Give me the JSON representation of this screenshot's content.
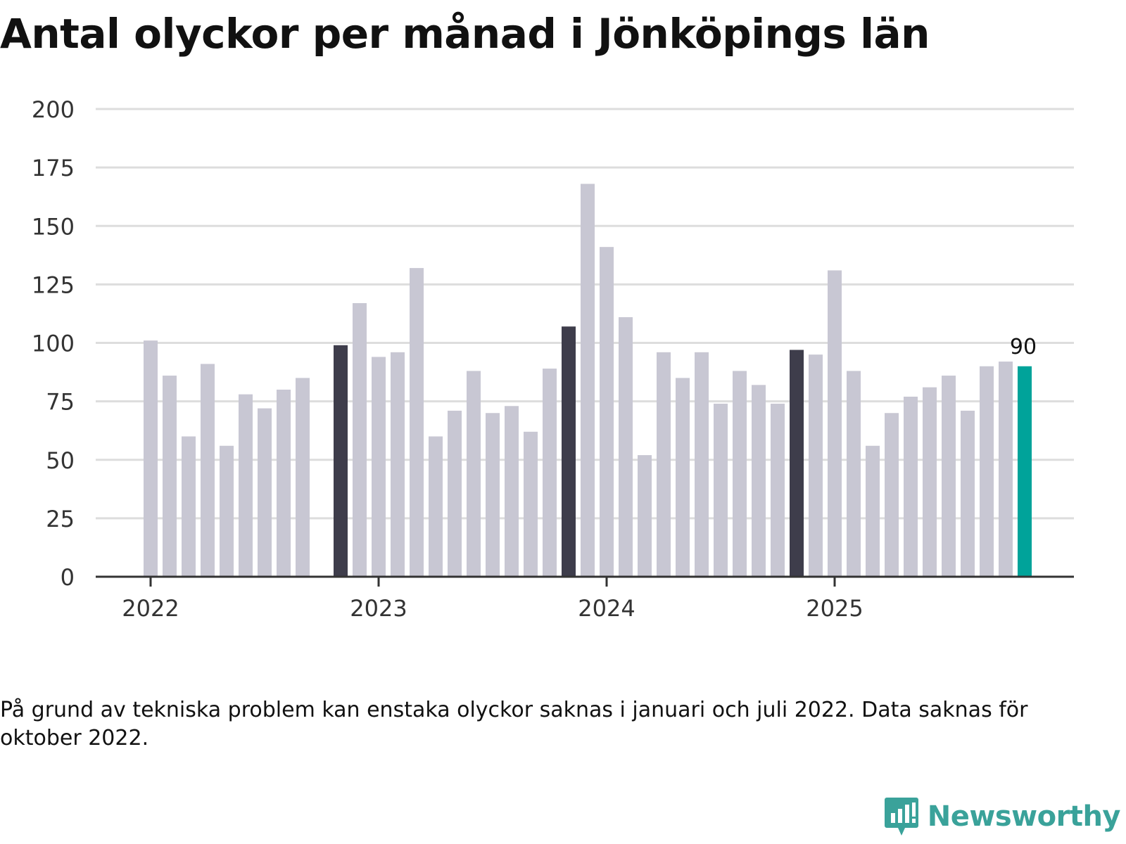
{
  "title": "Antal olyckor per månad i Jönköpings län",
  "footnote": "På grund av tekniska problem kan enstaka olyckor saknas i januari och juli 2022. Data saknas för oktober 2022.",
  "brand": {
    "name": "Newsworthy",
    "logo_icon": "newsworthy-logo-icon"
  },
  "colors": {
    "bar": "#c8c7d3",
    "november": "#3e3d4b",
    "latest": "#00a39a",
    "grid": "#dddddd",
    "axis": "#333333"
  },
  "chart_data": {
    "type": "bar",
    "title": "Antal olyckor per månad i Jönköpings län",
    "xlabel": "",
    "ylabel": "",
    "ylim": [
      0,
      200
    ],
    "yticks": [
      0,
      25,
      50,
      75,
      100,
      125,
      150,
      175,
      200
    ],
    "xticks": [
      "2022",
      "2023",
      "2024",
      "2025"
    ],
    "categories": [
      "2022-01",
      "2022-02",
      "2022-03",
      "2022-04",
      "2022-05",
      "2022-06",
      "2022-07",
      "2022-08",
      "2022-09",
      "2022-10",
      "2022-11",
      "2022-12",
      "2023-01",
      "2023-02",
      "2023-03",
      "2023-04",
      "2023-05",
      "2023-06",
      "2023-07",
      "2023-08",
      "2023-09",
      "2023-10",
      "2023-11",
      "2023-12",
      "2024-01",
      "2024-02",
      "2024-03",
      "2024-04",
      "2024-05",
      "2024-06",
      "2024-07",
      "2024-08",
      "2024-09",
      "2024-10",
      "2024-11",
      "2024-12",
      "2025-01",
      "2025-02",
      "2025-03",
      "2025-04",
      "2025-05",
      "2025-06",
      "2025-07",
      "2025-08",
      "2025-09",
      "2025-10",
      "2025-11"
    ],
    "values": [
      101,
      86,
      60,
      91,
      56,
      78,
      72,
      80,
      85,
      null,
      99,
      117,
      94,
      96,
      132,
      60,
      71,
      88,
      70,
      73,
      62,
      89,
      107,
      168,
      141,
      111,
      52,
      96,
      85,
      96,
      74,
      88,
      82,
      74,
      97,
      95,
      131,
      88,
      56,
      70,
      77,
      81,
      86,
      71,
      90,
      92,
      90
    ],
    "highlight_months": [
      "2022-11",
      "2023-11",
      "2024-11"
    ],
    "latest_label": "90"
  }
}
